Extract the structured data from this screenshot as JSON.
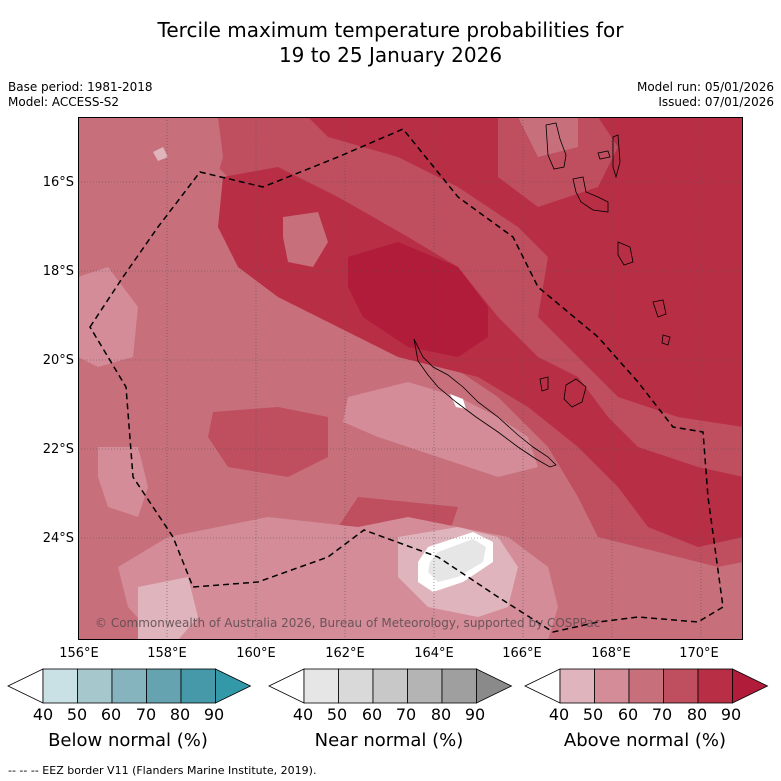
{
  "title": {
    "line1": "Tercile maximum temperature probabilities for",
    "line2": "19 to 25 January 2026"
  },
  "meta": {
    "base_period": "Base period: 1981-2018",
    "model": "Model: ACCESS-S2",
    "model_run": "Model run: 05/01/2026",
    "issued": "Issued: 07/01/2026"
  },
  "map": {
    "lat_labels": [
      "16°S",
      "18°S",
      "20°S",
      "22°S",
      "24°S"
    ],
    "lon_labels": [
      "156°E",
      "158°E",
      "160°E",
      "162°E",
      "164°E",
      "166°E",
      "168°E",
      "170°E"
    ],
    "copyright": "© Commonwealth of Australia 2026, Bureau of Meteorology, supported by COSPPac",
    "colors": {
      "above_40_50": "#e0b4bc",
      "above_50_60": "#d38c98",
      "above_60_70": "#c86f7c",
      "above_70_80": "#bf4e5f",
      "above_80_90": "#b82e45",
      "above_90": "#b01c3a",
      "near_40_50": "#e6e6e6",
      "land_outline": "#000000"
    }
  },
  "legends": [
    {
      "name": "Below normal (%)",
      "ticks": [
        "40",
        "50",
        "60",
        "70",
        "80",
        "90"
      ],
      "colors": [
        "#ffffff",
        "#c9e0e5",
        "#a6c8cd",
        "#86b4be",
        "#65a3b0",
        "#4599a9",
        "#3399a8"
      ]
    },
    {
      "name": "Near normal (%)",
      "ticks": [
        "40",
        "50",
        "60",
        "70",
        "80",
        "90"
      ],
      "colors": [
        "#ffffff",
        "#e6e6e6",
        "#d9d9d9",
        "#c8c8c8",
        "#b4b4b4",
        "#9f9f9f",
        "#8a8a8a"
      ]
    },
    {
      "name": "Above normal (%)",
      "ticks": [
        "40",
        "50",
        "60",
        "70",
        "80",
        "90"
      ],
      "colors": [
        "#ffffff",
        "#e0b4bc",
        "#d38c98",
        "#c86f7c",
        "#bf4e5f",
        "#b82e45",
        "#b01c3a"
      ]
    }
  ],
  "footnote": "--  --  -- EEZ border V11 (Flanders Marine Institute, 2019)."
}
